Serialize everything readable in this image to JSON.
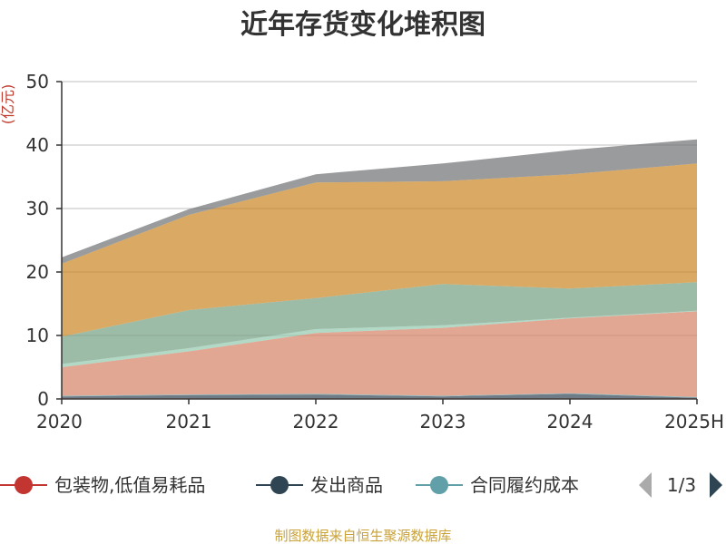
{
  "chart_data": {
    "type": "area",
    "stacked": true,
    "title": "近年存货变化堆积图",
    "unit_label": "(亿元)",
    "categories": [
      "2020",
      "2021",
      "2022",
      "2023",
      "2024",
      "2025H"
    ],
    "ylim": [
      0,
      50
    ],
    "yticks": [
      0,
      10,
      20,
      30,
      40,
      50
    ],
    "grid": true,
    "series": [
      {
        "name": "包装物,低值易耗品",
        "color": "#c23531",
        "values": [
          0.1,
          0.1,
          0.1,
          0.1,
          0.1,
          0.1
        ]
      },
      {
        "name": "发出商品",
        "color": "#2f4554",
        "values": [
          0.3,
          0.5,
          0.6,
          0.3,
          0.7,
          0.1
        ]
      },
      {
        "name": "合同履约成本",
        "color": "#61a0a8",
        "values": [
          0.1,
          0.1,
          0.1,
          0.1,
          0.1,
          0.1
        ]
      },
      {
        "name": "",
        "color": "#d48265",
        "values": [
          4.5,
          6.8,
          9.6,
          10.7,
          11.8,
          13.5
        ]
      },
      {
        "name": "",
        "color": "#91c7ae",
        "values": [
          0.5,
          0.5,
          0.6,
          0.4,
          0.1,
          0.1
        ]
      },
      {
        "name": "",
        "color": "#749f83",
        "values": [
          4.3,
          6.0,
          4.9,
          6.5,
          4.6,
          4.5
        ]
      },
      {
        "name": "",
        "color": "#ca8622",
        "values": [
          11.5,
          15.0,
          18.2,
          16.2,
          18.0,
          18.7
        ]
      },
      {
        "name": "",
        "color": "#6e7074",
        "values": [
          1.0,
          0.9,
          1.3,
          2.8,
          3.8,
          3.8
        ]
      }
    ]
  },
  "legend": {
    "page": "1/3",
    "prev_icon": "triangle-left-icon",
    "next_icon": "triangle-right-icon"
  },
  "source_text": "制图数据来自恒生聚源数据库"
}
